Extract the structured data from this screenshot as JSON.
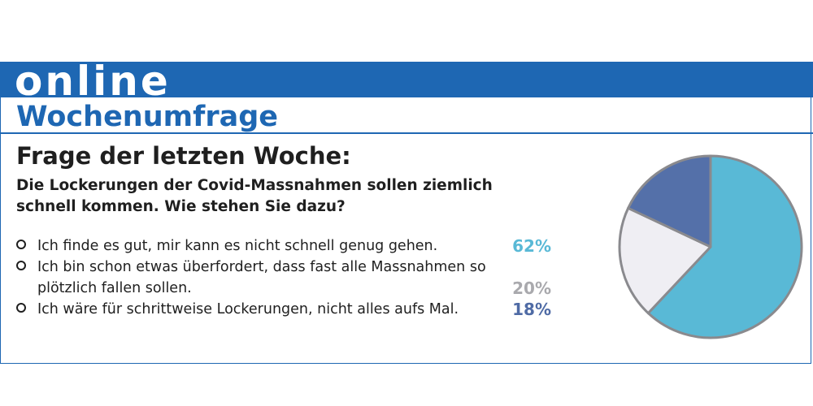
{
  "header": {
    "brand": "online",
    "title": "Wochenumfrage"
  },
  "poll": {
    "question_heading": "Frage der letzten Woche:",
    "question": "Die Lockerungen der Covid-Massnahmen sollen ziemlich schnell kommen. Wie stehen Sie dazu?",
    "answers": [
      {
        "label": "Ich finde es gut, mir kann es nicht schnell genug gehen.",
        "percent": "62%",
        "color": "#59b9d6"
      },
      {
        "label": "Ich bin schon etwas überfordert, dass fast alle Massnahmen so plötzlich fallen sollen.",
        "percent": "20%",
        "color": "#a9a9ad"
      },
      {
        "label": "Ich wäre für schrittweise Lockerungen, nicht alles aufs Mal.",
        "percent": "18%",
        "color": "#4f6ba5"
      }
    ]
  },
  "chart_data": {
    "type": "pie",
    "categories": [
      "Ich finde es gut, mir kann es nicht schnell genug gehen.",
      "Ich bin schon etwas überfordert, dass fast alle Massnahmen so plötzlich fallen sollen.",
      "Ich wäre für schrittweise Lockerungen, nicht alles aufs Mal."
    ],
    "values": [
      62,
      20,
      18
    ],
    "colors": [
      "#59b9d6",
      "#efeef3",
      "#5470a9"
    ],
    "border_color": "#8a8a8e"
  }
}
